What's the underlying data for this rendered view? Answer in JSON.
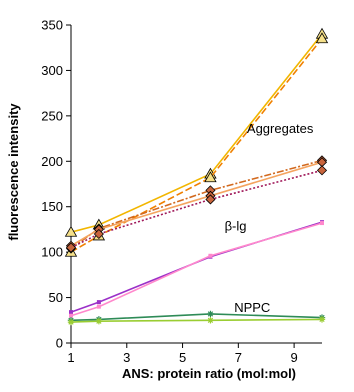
{
  "chart_data": {
    "type": "line",
    "xlabel": "ANS: protein ratio (mol:mol)",
    "ylabel": "fluorescence intensity",
    "xlim": [
      1,
      10
    ],
    "ylim": [
      0,
      350
    ],
    "x_ticks": [
      1,
      3,
      5,
      7,
      9
    ],
    "y_ticks": [
      0,
      50,
      100,
      150,
      200,
      250,
      300,
      350
    ],
    "grid": false,
    "legend": "none",
    "annotations": [
      {
        "text": "Aggregates",
        "x": 8.5,
        "y": 231
      },
      {
        "text": "β-lg",
        "x": 6.9,
        "y": 124
      },
      {
        "text": "NPPC",
        "x": 7.5,
        "y": 34
      }
    ],
    "series": [
      {
        "x": [
          1,
          2,
          6,
          10
        ],
        "y": [
          122,
          130,
          186,
          340
        ],
        "color": "#f2b600",
        "style": "solid",
        "marker": "triangle"
      },
      {
        "x": [
          1,
          2,
          6,
          10
        ],
        "y": [
          100,
          118,
          182,
          335
        ],
        "color": "#f08000",
        "style": "dashed",
        "marker": "triangle"
      },
      {
        "x": [
          1,
          2,
          6,
          10
        ],
        "y": [
          104,
          126,
          168,
          201
        ],
        "color": "#d2691e",
        "style": "dashdot",
        "marker": "diamond"
      },
      {
        "x": [
          1,
          2,
          6,
          10
        ],
        "y": [
          107,
          125,
          162,
          199
        ],
        "color": "#f4a460",
        "style": "solid",
        "marker": "diamond"
      },
      {
        "x": [
          1,
          2,
          6,
          10
        ],
        "y": [
          105,
          120,
          158,
          190
        ],
        "color": "#a0195a",
        "style": "dotted",
        "marker": "diamond"
      },
      {
        "x": [
          1,
          2,
          6,
          10
        ],
        "y": [
          34,
          45,
          95,
          133
        ],
        "color": "#9b30c8",
        "style": "solid",
        "marker": "square"
      },
      {
        "x": [
          1,
          2,
          6,
          10
        ],
        "y": [
          30,
          40,
          96,
          132
        ],
        "color": "#ff88cc",
        "style": "solid",
        "marker": "square"
      },
      {
        "x": [
          1,
          2,
          6,
          10
        ],
        "y": [
          25,
          26,
          32,
          28
        ],
        "color": "#2e8b57",
        "style": "solid",
        "marker": "star"
      },
      {
        "x": [
          1,
          2,
          6,
          10
        ],
        "y": [
          23,
          24,
          25,
          26
        ],
        "color": "#9acd32",
        "style": "solid",
        "marker": "star"
      }
    ]
  }
}
